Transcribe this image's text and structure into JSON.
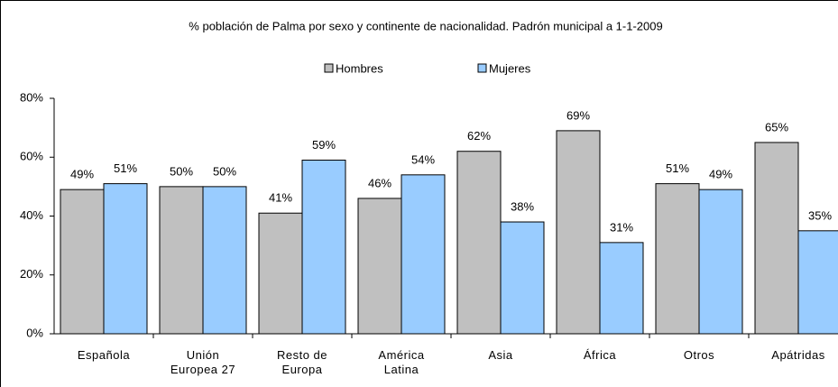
{
  "chart_data": {
    "type": "bar",
    "title": "% población de Palma por sexo y continente de nacionalidad. Padrón municipal a 1-1-2009",
    "categories": [
      "Española",
      "Unión Europea 27",
      "Resto de Europa",
      "América Latina",
      "Asia",
      "África",
      "Otros",
      "Apátridas"
    ],
    "series": [
      {
        "name": "Hombres",
        "color": "#c0c0c0",
        "values": [
          49,
          50,
          41,
          46,
          62,
          69,
          51,
          65
        ],
        "value_labels": [
          "49%",
          "50%",
          "41%",
          "46%",
          "62%",
          "69%",
          "51%",
          "65%"
        ]
      },
      {
        "name": "Mujeres",
        "color": "#99ccff",
        "values": [
          51,
          50,
          59,
          54,
          38,
          31,
          49,
          35
        ],
        "value_labels": [
          "51%",
          "50%",
          "59%",
          "54%",
          "38%",
          "31%",
          "49%",
          "35%"
        ]
      }
    ],
    "ylim": [
      0,
      80
    ],
    "yticks": [
      {
        "value": 0,
        "label": "0%"
      },
      {
        "value": 20,
        "label": "20%"
      },
      {
        "value": 40,
        "label": "40%"
      },
      {
        "value": 60,
        "label": "60%"
      },
      {
        "value": 80,
        "label": "80%"
      }
    ],
    "grid": false,
    "legend": "top"
  }
}
